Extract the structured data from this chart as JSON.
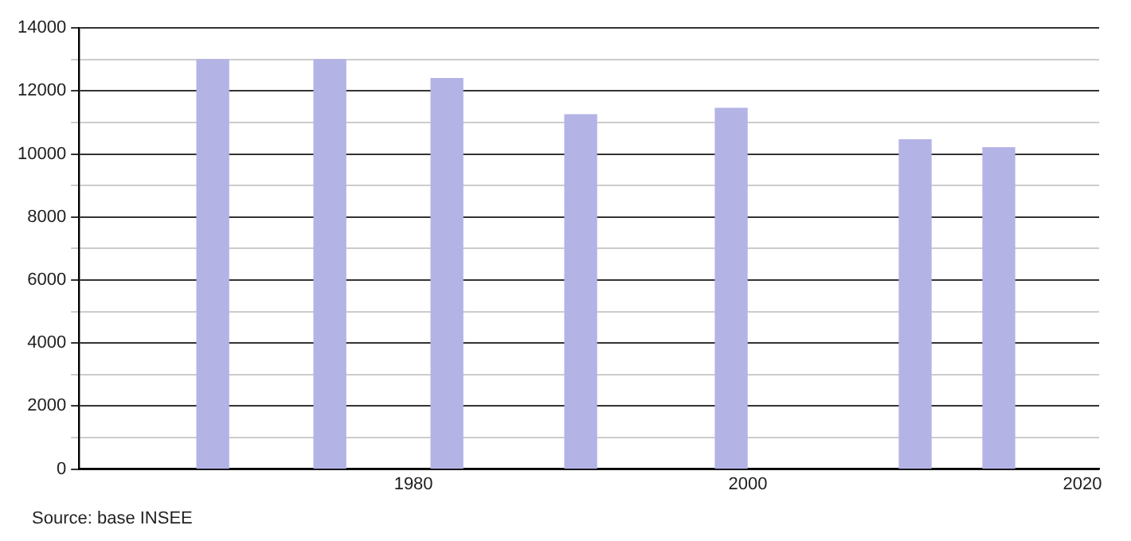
{
  "chart_data": {
    "type": "bar",
    "x": [
      1968,
      1975,
      1982,
      1990,
      1999,
      2010,
      2015
    ],
    "values": [
      13000,
      13000,
      12400,
      11250,
      11450,
      10450,
      10200
    ],
    "color": "#b3b3e6",
    "xlim": [
      1960,
      2021
    ],
    "xticks": [
      1980,
      2000,
      2020
    ],
    "ylim": [
      0,
      14000
    ],
    "yticks": [
      0,
      {
        "value": 1000,
        "label": null
      },
      2000,
      {
        "value": 3000,
        "label": null
      },
      4000,
      {
        "value": 5000,
        "label": null
      },
      6000,
      {
        "value": 7000,
        "label": null
      },
      8000,
      {
        "value": 9000,
        "label": null
      },
      10000,
      {
        "value": 11000,
        "label": null
      },
      12000,
      {
        "value": 13000,
        "label": null
      },
      14000
    ],
    "grid": "y",
    "legend": false,
    "annotations": [
      "Source: base INSEE"
    ]
  }
}
